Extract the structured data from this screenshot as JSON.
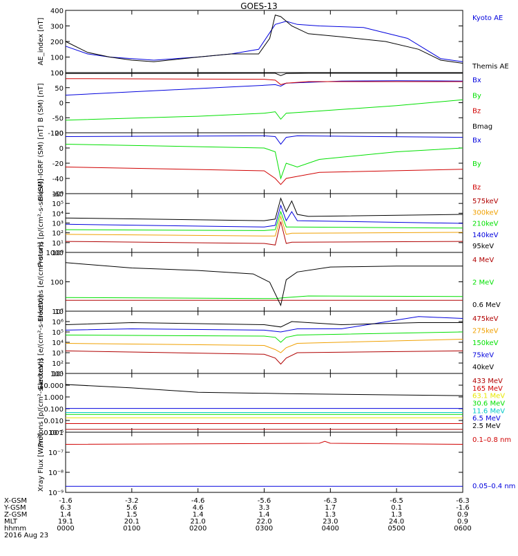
{
  "title": "GOES-13",
  "date": "2016 Aug 23",
  "colors": {
    "black": "#000000",
    "blue": "#0000dd",
    "red": "#d00000",
    "green": "#00e000",
    "orange": "#f0a000",
    "cyan": "#00c8c8",
    "yellow": "#e8e800",
    "darkred": "#b00000"
  },
  "chart_data": [
    {
      "type": "line",
      "ylabel": "AE_index [nT]",
      "ylim": [
        0,
        400
      ],
      "yticks": [
        "0",
        "100",
        "200",
        "300",
        "400"
      ],
      "series": [
        {
          "name": "Kyoto AE",
          "color": "blue",
          "x": [
            0,
            20,
            40,
            60,
            80,
            120,
            150,
            175,
            190,
            200,
            210,
            230,
            270,
            310,
            340,
            360
          ],
          "y": [
            170,
            120,
            100,
            90,
            80,
            100,
            120,
            150,
            310,
            330,
            310,
            300,
            290,
            220,
            90,
            70
          ]
        },
        {
          "name": "Themis AE",
          "color": "black",
          "x": [
            0,
            20,
            40,
            60,
            80,
            120,
            150,
            175,
            185,
            190,
            195,
            205,
            220,
            250,
            290,
            320,
            340,
            360
          ],
          "y": [
            200,
            130,
            100,
            80,
            70,
            100,
            120,
            120,
            220,
            370,
            360,
            300,
            250,
            230,
            200,
            150,
            80,
            60
          ]
        }
      ]
    },
    {
      "type": "line",
      "ylabel": "B (SM) [nT]",
      "ylim": [
        -100,
        100
      ],
      "yticks": [
        "-100",
        "-50",
        "0",
        "50",
        "100"
      ],
      "series": [
        {
          "name": "Bx",
          "color": "blue",
          "x": [
            0,
            180,
            190,
            195,
            200,
            250,
            300,
            360
          ],
          "y": [
            25,
            58,
            60,
            55,
            65,
            72,
            73,
            72
          ]
        },
        {
          "name": "By",
          "color": "green",
          "x": [
            0,
            120,
            180,
            190,
            195,
            200,
            220,
            300,
            360
          ],
          "y": [
            -58,
            -45,
            -35,
            -30,
            -55,
            -35,
            -30,
            -10,
            10
          ]
        },
        {
          "name": "Bz",
          "color": "red",
          "x": [
            0,
            180,
            190,
            195,
            200,
            220,
            360
          ],
          "y": [
            80,
            78,
            75,
            60,
            65,
            70,
            70
          ]
        },
        {
          "name": "Bmag",
          "color": "black",
          "x": [
            0,
            180,
            190,
            195,
            200,
            220,
            360
          ],
          "y": [
            97,
            98,
            98,
            90,
            97,
            98,
            98
          ]
        }
      ]
    },
    {
      "type": "line",
      "ylabel": "B (SM)-IGRF (SM) [nT]",
      "ylim": [
        -60,
        20
      ],
      "yticks": [
        "-60",
        "-40",
        "-20",
        "0",
        "20"
      ],
      "series": [
        {
          "name": "Bx",
          "color": "blue",
          "x": [
            0,
            180,
            190,
            195,
            200,
            210,
            360
          ],
          "y": [
            15,
            16,
            15,
            5,
            14,
            16,
            14
          ]
        },
        {
          "name": "By",
          "color": "green",
          "x": [
            0,
            180,
            190,
            195,
            200,
            210,
            230,
            300,
            360
          ],
          "y": [
            5,
            0,
            -5,
            -40,
            -20,
            -25,
            -15,
            -5,
            0
          ]
        },
        {
          "name": "Bz",
          "color": "red",
          "x": [
            0,
            180,
            190,
            195,
            200,
            230,
            360
          ],
          "y": [
            -25,
            -30,
            -40,
            -48,
            -40,
            -32,
            -28
          ]
        }
      ]
    },
    {
      "type": "line",
      "ylabel": "Protons [p/(cm²-s-sr-keV)]",
      "ylog": true,
      "ylim": [
        0.3,
        1000000
      ],
      "yticks": [
        "10⁰",
        "10¹",
        "10²",
        "10³",
        "10⁴",
        "10⁵",
        "10⁶"
      ],
      "series": [
        {
          "name": "575keV",
          "color": "darkred",
          "x": [
            0,
            180,
            190,
            195,
            200,
            205,
            360
          ],
          "y": [
            5,
            3,
            2,
            800,
            3,
            4,
            5
          ]
        },
        {
          "name": "300keV",
          "color": "orange",
          "x": [
            0,
            180,
            190,
            195,
            200,
            205,
            360
          ],
          "y": [
            30,
            20,
            20,
            3000,
            30,
            40,
            50
          ]
        },
        {
          "name": "210keV",
          "color": "green",
          "x": [
            0,
            180,
            190,
            195,
            200,
            205,
            360
          ],
          "y": [
            100,
            80,
            100,
            10000,
            200,
            200,
            150
          ]
        },
        {
          "name": "140keV",
          "color": "blue",
          "x": [
            0,
            180,
            190,
            195,
            200,
            205,
            210,
            360
          ],
          "y": [
            400,
            200,
            300,
            50000,
            1000,
            10000,
            1000,
            500
          ]
        },
        {
          "name": "95keV",
          "color": "black",
          "x": [
            0,
            180,
            190,
            195,
            200,
            205,
            210,
            220,
            360
          ],
          "y": [
            2000,
            1000,
            1500,
            300000,
            10000,
            150000,
            5000,
            3000,
            5000
          ]
        }
      ]
    },
    {
      "type": "line",
      "ylabel": "Electrons [e/(cm²-s-sr)]",
      "ylog": true,
      "ylim": [
        5,
        5000
      ],
      "yticks": [
        "10",
        "100",
        "1000"
      ],
      "series": [
        {
          "name": "4 MeV",
          "color": "darkred",
          "x": [
            0,
            360
          ],
          "y": [
            18,
            18
          ]
        },
        {
          "name": "2 MeV",
          "color": "green",
          "x": [
            0,
            190,
            200,
            220,
            360
          ],
          "y": [
            25,
            22,
            25,
            30,
            28
          ]
        },
        {
          "name": "0.6 MeV",
          "color": "black",
          "x": [
            0,
            60,
            120,
            170,
            185,
            195,
            200,
            210,
            240,
            300,
            360
          ],
          "y": [
            1500,
            800,
            600,
            400,
            150,
            10,
            200,
            500,
            900,
            1000,
            1000
          ]
        }
      ]
    },
    {
      "type": "line",
      "ylabel": "Electrons [e/(cm²-s-sr-keV)]",
      "ylog": true,
      "ylim": [
        10,
        10000000
      ],
      "yticks": [
        "10¹",
        "10²",
        "10³",
        "10⁴",
        "10⁵",
        "10⁶",
        "10⁷"
      ],
      "series": [
        {
          "name": "475keV",
          "color": "darkred",
          "x": [
            0,
            180,
            190,
            195,
            200,
            210,
            360
          ],
          "y": [
            1500,
            700,
            300,
            80,
            300,
            1000,
            1500
          ]
        },
        {
          "name": "275keV",
          "color": "orange",
          "x": [
            0,
            180,
            190,
            195,
            200,
            210,
            360
          ],
          "y": [
            8000,
            5000,
            2000,
            1000,
            3000,
            8000,
            20000
          ]
        },
        {
          "name": "150keV",
          "color": "green",
          "x": [
            0,
            180,
            190,
            195,
            200,
            210,
            360
          ],
          "y": [
            50000,
            40000,
            30000,
            10000,
            30000,
            50000,
            100000
          ]
        },
        {
          "name": "75keV",
          "color": "blue",
          "x": [
            0,
            60,
            180,
            195,
            210,
            250,
            320,
            360
          ],
          "y": [
            150000,
            200000,
            150000,
            100000,
            200000,
            200000,
            3000000,
            2000000
          ]
        },
        {
          "name": "40keV",
          "color": "black",
          "x": [
            0,
            60,
            180,
            195,
            205,
            250,
            320,
            360
          ],
          "y": [
            500000,
            800000,
            500000,
            300000,
            1000000,
            500000,
            800000,
            800000
          ]
        }
      ]
    },
    {
      "type": "line",
      "ylabel": "Protons [p/(cm²-s-sr-keV)]",
      "ylog": true,
      "ylim": [
        0.0005,
        100
      ],
      "yticks": [
        "0.001",
        "0.010",
        "0.100",
        "1.000",
        "10.000",
        "100"
      ],
      "series": [
        {
          "name": "433 MeV",
          "color": "darkred",
          "x": [
            0,
            360
          ],
          "y": [
            0.0009,
            0.0009
          ]
        },
        {
          "name": "165 MeV",
          "color": "red",
          "x": [
            0,
            360
          ],
          "y": [
            0.003,
            0.003
          ]
        },
        {
          "name": "63.1 MeV",
          "color": "yellow",
          "x": [
            0,
            360
          ],
          "y": [
            0.01,
            0.01
          ]
        },
        {
          "name": "30.6 MeV",
          "color": "green",
          "x": [
            0,
            360
          ],
          "y": [
            0.02,
            0.02
          ]
        },
        {
          "name": "11.6 MeV",
          "color": "cyan",
          "x": [
            0,
            360
          ],
          "y": [
            0.03,
            0.03
          ]
        },
        {
          "name": "6.5 MeV",
          "color": "blue",
          "x": [
            0,
            360
          ],
          "y": [
            0.07,
            0.07
          ]
        },
        {
          "name": "2.5 MeV",
          "color": "black",
          "x": [
            0,
            60,
            120,
            200,
            280,
            360
          ],
          "y": [
            10,
            5,
            2,
            1.5,
            1.2,
            1.0
          ]
        }
      ]
    },
    {
      "type": "line",
      "ylabel": "Xray Flux [W/m²]",
      "ylog": true,
      "ylim": [
        1e-09,
        1e-06
      ],
      "yticks": [
        "10⁻⁹",
        "10⁻⁸",
        "10⁻⁷",
        "10⁻⁶"
      ],
      "series": [
        {
          "name": "0.1–0.8 nm",
          "color": "red",
          "x": [
            0,
            230,
            235,
            240,
            360
          ],
          "y": [
            2.5e-07,
            2.8e-07,
            3.5e-07,
            2.8e-07,
            2.5e-07
          ]
        },
        {
          "name": "0.05–0.4 nm",
          "color": "blue",
          "x": [
            0,
            360
          ],
          "y": [
            2e-09,
            2e-09
          ]
        }
      ]
    }
  ],
  "axis": {
    "row_labels": [
      "X-GSM",
      "Y-GSM",
      "Z-GSM",
      "MLT",
      "hhmm"
    ],
    "columns": [
      [
        "-1.6",
        "6.3",
        "1.4",
        "19.1",
        "0000"
      ],
      [
        "-3.2",
        "5.6",
        "1.5",
        "20.1",
        "0100"
      ],
      [
        "-4.6",
        "4.6",
        "1.4",
        "21.0",
        "0200"
      ],
      [
        "-5.6",
        "3.3",
        "1.4",
        "22.0",
        "0300"
      ],
      [
        "-6.3",
        "1.7",
        "1.3",
        "23.0",
        "0400"
      ],
      [
        "-6.5",
        "0.1",
        "1.3",
        "24.0",
        "0500"
      ],
      [
        "-6.3",
        "-1.6",
        "0.9",
        "0.9",
        "0600"
      ]
    ]
  }
}
